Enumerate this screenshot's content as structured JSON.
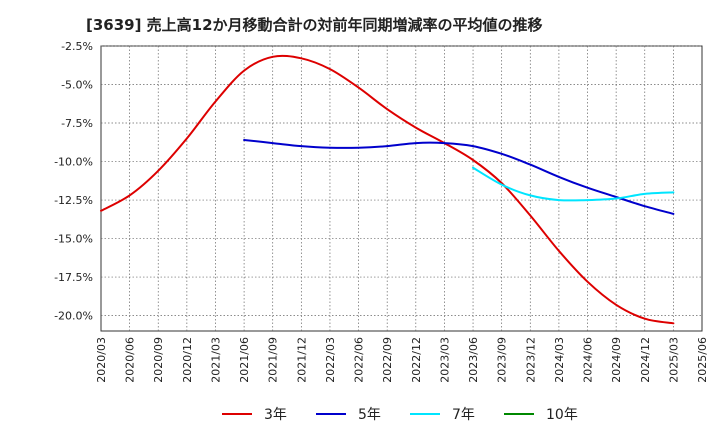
{
  "chart_data": {
    "type": "line",
    "title": "[3639]  売上高12か月移動合計の対前年同期増減率の平均値の推移",
    "xlabel": "",
    "ylabel": "",
    "ylim": [
      -21.0,
      -2.5
    ],
    "y_ticks": [
      "-2.5%",
      "-5.0%",
      "-7.5%",
      "-10.0%",
      "-12.5%",
      "-15.0%",
      "-17.5%",
      "-20.0%"
    ],
    "y_tick_values": [
      -2.5,
      -5.0,
      -7.5,
      -10.0,
      -12.5,
      -15.0,
      -17.5,
      -20.0
    ],
    "x_ticks": [
      "2020/03",
      "2020/06",
      "2020/09",
      "2020/12",
      "2021/03",
      "2021/06",
      "2021/09",
      "2021/12",
      "2022/03",
      "2022/06",
      "2022/09",
      "2022/12",
      "2023/03",
      "2023/06",
      "2023/09",
      "2023/12",
      "2024/03",
      "2024/06",
      "2024/09",
      "2024/12",
      "2025/03",
      "2025/06"
    ],
    "grid": true,
    "legend_position": "bottom",
    "series": [
      {
        "name": "3年",
        "color": "#dd0000",
        "points": [
          [
            "2020/03",
            -13.2
          ],
          [
            "2020/06",
            -12.2
          ],
          [
            "2020/09",
            -10.6
          ],
          [
            "2020/12",
            -8.5
          ],
          [
            "2021/03",
            -6.1
          ],
          [
            "2021/06",
            -4.1
          ],
          [
            "2021/09",
            -3.2
          ],
          [
            "2021/12",
            -3.3
          ],
          [
            "2022/03",
            -4.0
          ],
          [
            "2022/06",
            -5.2
          ],
          [
            "2022/09",
            -6.6
          ],
          [
            "2022/12",
            -7.8
          ],
          [
            "2023/03",
            -8.8
          ],
          [
            "2023/06",
            -9.9
          ],
          [
            "2023/09",
            -11.4
          ],
          [
            "2023/12",
            -13.5
          ],
          [
            "2024/03",
            -15.8
          ],
          [
            "2024/06",
            -17.8
          ],
          [
            "2024/09",
            -19.3
          ],
          [
            "2024/12",
            -20.2
          ],
          [
            "2025/03",
            -20.5
          ]
        ]
      },
      {
        "name": "5年",
        "color": "#0000cc",
        "points": [
          [
            "2021/06",
            -8.6
          ],
          [
            "2021/09",
            -8.8
          ],
          [
            "2021/12",
            -9.0
          ],
          [
            "2022/03",
            -9.1
          ],
          [
            "2022/06",
            -9.1
          ],
          [
            "2022/09",
            -9.0
          ],
          [
            "2022/12",
            -8.8
          ],
          [
            "2023/03",
            -8.8
          ],
          [
            "2023/06",
            -9.0
          ],
          [
            "2023/09",
            -9.5
          ],
          [
            "2023/12",
            -10.2
          ],
          [
            "2024/03",
            -11.0
          ],
          [
            "2024/06",
            -11.7
          ],
          [
            "2024/09",
            -12.3
          ],
          [
            "2024/12",
            -12.9
          ],
          [
            "2025/03",
            -13.4
          ]
        ]
      },
      {
        "name": "7年",
        "color": "#00e5ff",
        "points": [
          [
            "2023/06",
            -10.4
          ],
          [
            "2023/09",
            -11.5
          ],
          [
            "2023/12",
            -12.2
          ],
          [
            "2024/03",
            -12.5
          ],
          [
            "2024/06",
            -12.5
          ],
          [
            "2024/09",
            -12.4
          ],
          [
            "2024/12",
            -12.1
          ],
          [
            "2025/03",
            -12.0
          ]
        ]
      },
      {
        "name": "10年",
        "color": "#008800",
        "points": []
      }
    ]
  }
}
